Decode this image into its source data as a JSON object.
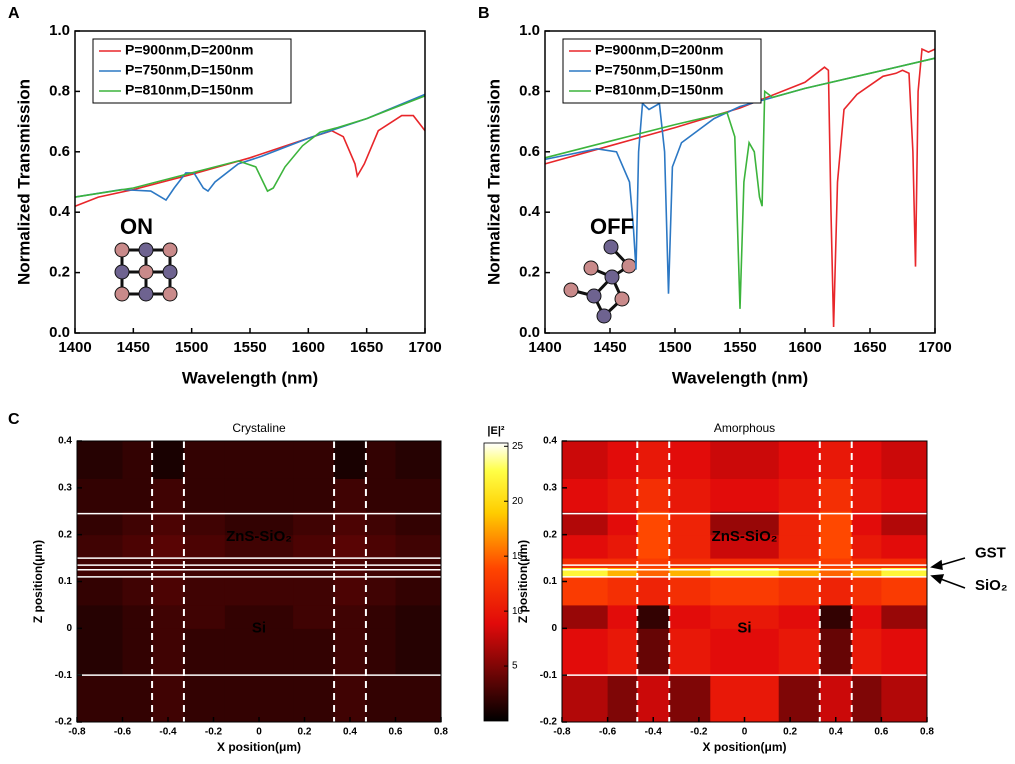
{
  "panel_labels": [
    "A",
    "B",
    "C"
  ],
  "chart_data": [
    {
      "type": "line",
      "xlabel": "Wavelength (nm)",
      "ylabel": "Normalized Transmission",
      "xlim": [
        1400,
        1700
      ],
      "xticks": [
        1400,
        1450,
        1500,
        1550,
        1600,
        1650,
        1700
      ],
      "ylim": [
        0,
        1
      ],
      "yticks": [
        {
          "value": 0,
          "label": "0.0"
        },
        0.2,
        0.4,
        0.6,
        0.8,
        {
          "value": 1,
          "label": "1.0"
        }
      ],
      "annotations": [
        "ON"
      ],
      "legend": "top-left",
      "series": [
        {
          "name": "P=900nm,D=200nm",
          "color": "#e8262a",
          "x": [
            1400,
            1420,
            1450,
            1500,
            1550,
            1600,
            1620,
            1630,
            1640,
            1642,
            1648,
            1660,
            1680,
            1690,
            1700
          ],
          "values": [
            0.42,
            0.45,
            0.475,
            0.525,
            0.58,
            0.645,
            0.67,
            0.65,
            0.56,
            0.52,
            0.56,
            0.67,
            0.72,
            0.72,
            0.67
          ]
        },
        {
          "name": "P=750nm,D=150nm",
          "color": "#2c78c4",
          "x": [
            1400,
            1440,
            1465,
            1478,
            1485,
            1495,
            1502,
            1510,
            1514,
            1520,
            1540,
            1560,
            1600,
            1650,
            1700
          ],
          "values": [
            0.45,
            0.475,
            0.47,
            0.44,
            0.48,
            0.53,
            0.53,
            0.48,
            0.47,
            0.5,
            0.56,
            0.585,
            0.645,
            0.71,
            0.79
          ]
        },
        {
          "name": "P=810nm,D=150nm",
          "color": "#3cb43c",
          "x": [
            1400,
            1450,
            1500,
            1540,
            1555,
            1565,
            1570,
            1580,
            1595,
            1610,
            1625,
            1650,
            1700
          ],
          "values": [
            0.45,
            0.48,
            0.53,
            0.57,
            0.55,
            0.47,
            0.48,
            0.55,
            0.62,
            0.665,
            0.68,
            0.71,
            0.785
          ]
        }
      ]
    },
    {
      "type": "line",
      "xlabel": "Wavelength (nm)",
      "ylabel": "Normalized Transmission",
      "xlim": [
        1400,
        1700
      ],
      "xticks": [
        1400,
        1450,
        1500,
        1550,
        1600,
        1650,
        1700
      ],
      "ylim": [
        0,
        1
      ],
      "yticks": [
        {
          "value": 0,
          "label": "0.0"
        },
        0.2,
        0.4,
        0.6,
        0.8,
        {
          "value": 1,
          "label": "1.0"
        }
      ],
      "annotations": [
        "OFF"
      ],
      "legend": "top-left",
      "series": [
        {
          "name": "P=900nm,D=200nm",
          "color": "#e8262a",
          "x": [
            1400,
            1450,
            1500,
            1550,
            1600,
            1615,
            1618,
            1620,
            1622,
            1625,
            1630,
            1640,
            1660,
            1670,
            1675,
            1680,
            1683,
            1685,
            1687,
            1690,
            1695,
            1700
          ],
          "values": [
            0.56,
            0.62,
            0.68,
            0.745,
            0.83,
            0.88,
            0.87,
            0.4,
            0.02,
            0.5,
            0.74,
            0.79,
            0.85,
            0.86,
            0.87,
            0.86,
            0.6,
            0.22,
            0.8,
            0.94,
            0.93,
            0.94
          ]
        },
        {
          "name": "P=750nm,D=150nm",
          "color": "#2c78c4",
          "x": [
            1400,
            1440,
            1455,
            1465,
            1468,
            1470,
            1472,
            1475,
            1480,
            1488,
            1492,
            1495,
            1498,
            1505,
            1530,
            1550,
            1600,
            1700
          ],
          "values": [
            0.575,
            0.61,
            0.6,
            0.5,
            0.35,
            0.21,
            0.6,
            0.76,
            0.74,
            0.76,
            0.6,
            0.13,
            0.55,
            0.63,
            0.71,
            0.75,
            0.81,
            0.91
          ]
        },
        {
          "name": "P=810nm,D=150nm",
          "color": "#3cb43c",
          "x": [
            1400,
            1450,
            1500,
            1540,
            1546,
            1550,
            1553,
            1557,
            1561,
            1565,
            1567,
            1569,
            1575,
            1600,
            1650,
            1700
          ],
          "values": [
            0.58,
            0.635,
            0.69,
            0.73,
            0.65,
            0.08,
            0.5,
            0.63,
            0.6,
            0.45,
            0.42,
            0.8,
            0.78,
            0.81,
            0.86,
            0.91
          ]
        }
      ]
    },
    {
      "type": "heatmap",
      "title": "Crystaline",
      "xlabel": "X position(μm)",
      "ylabel": "Z position(μm)",
      "xlim": [
        -0.8,
        0.8
      ],
      "xticks": [
        -0.8,
        -0.6,
        -0.4,
        -0.2,
        0,
        0.2,
        0.4,
        0.6,
        0.8
      ],
      "ylim": [
        -0.2,
        0.4
      ],
      "yticks": [
        -0.2,
        -0.1,
        0,
        0.1,
        0.2,
        0.3,
        0.4
      ],
      "xbins": [
        -0.8,
        -0.6,
        -0.47,
        -0.33,
        -0.15,
        0.15,
        0.33,
        0.47,
        0.6,
        0.8
      ],
      "ybins": [
        -0.2,
        -0.1,
        0,
        0.05,
        0.11,
        0.13,
        0.15,
        0.2,
        0.25,
        0.32,
        0.4
      ],
      "values": [
        [
          2,
          2,
          2.5,
          2,
          2,
          2,
          2.5,
          2,
          2
        ],
        [
          1.5,
          2,
          2.5,
          2,
          2,
          2,
          2.5,
          2,
          1.5
        ],
        [
          1.5,
          2,
          2.5,
          2.5,
          2,
          2.5,
          2.5,
          2,
          1.5
        ],
        [
          2,
          2.5,
          3,
          2.5,
          2.5,
          2.5,
          3,
          2.5,
          2
        ],
        [
          2.5,
          2.5,
          3,
          2.5,
          2.5,
          2.5,
          3,
          2.5,
          2.5
        ],
        [
          2.5,
          2.5,
          3,
          2.5,
          2.5,
          2.5,
          3,
          2.5,
          2.5
        ],
        [
          2.5,
          3,
          3.5,
          3,
          2.5,
          3,
          3.5,
          3,
          2.5
        ],
        [
          2,
          2.5,
          3,
          2.5,
          2,
          2.5,
          3,
          2.5,
          2
        ],
        [
          2,
          2,
          2.5,
          2,
          2,
          2,
          2.5,
          2,
          2
        ],
        [
          1.5,
          2,
          1,
          2,
          2,
          2,
          1,
          2,
          1.5
        ]
      ],
      "layer_lines": [
        0.245,
        0.15,
        0.135,
        0.125,
        0.11,
        -0.1
      ],
      "pillar_edges": [
        -0.47,
        -0.33,
        0.33,
        0.47
      ],
      "annotations": [
        "ZnS-SiO₂",
        "Si"
      ]
    },
    {
      "type": "heatmap",
      "title": "Amorphous",
      "xlabel": "X position(μm)",
      "ylabel": "Z position(μm)",
      "xlim": [
        -0.8,
        0.8
      ],
      "xticks": [
        -0.8,
        -0.6,
        -0.4,
        -0.2,
        0,
        0.2,
        0.4,
        0.6,
        0.8
      ],
      "ylim": [
        -0.2,
        0.4
      ],
      "yticks": [
        -0.2,
        -0.1,
        0,
        0.1,
        0.2,
        0.3,
        0.4
      ],
      "xbins": [
        -0.8,
        -0.6,
        -0.47,
        -0.33,
        -0.15,
        0.15,
        0.33,
        0.47,
        0.6,
        0.8
      ],
      "ybins": [
        -0.2,
        -0.1,
        0,
        0.05,
        0.11,
        0.13,
        0.15,
        0.2,
        0.25,
        0.32,
        0.4
      ],
      "values": [
        [
          7,
          5,
          8,
          5,
          10,
          5,
          8,
          5,
          7
        ],
        [
          9,
          10,
          4,
          10,
          9,
          10,
          4,
          10,
          9
        ],
        [
          6,
          9,
          2,
          9,
          10,
          9,
          2,
          9,
          6
        ],
        [
          13,
          12,
          11,
          12,
          13,
          12,
          11,
          12,
          13
        ],
        [
          22,
          18,
          15,
          18,
          22,
          18,
          15,
          18,
          22
        ],
        [
          12,
          12,
          13,
          12,
          12,
          12,
          13,
          12,
          12
        ],
        [
          9,
          10,
          14,
          11,
          8,
          11,
          14,
          10,
          9
        ],
        [
          7,
          9,
          14,
          11,
          6,
          11,
          14,
          9,
          7
        ],
        [
          9,
          10,
          12,
          10,
          9,
          10,
          12,
          10,
          9
        ],
        [
          8,
          9,
          10,
          9,
          8,
          9,
          10,
          9,
          8
        ]
      ],
      "layer_lines": [
        0.245,
        0.135,
        0.125,
        0.11,
        -0.1
      ],
      "pillar_edges": [
        -0.47,
        -0.33,
        0.33,
        0.47
      ],
      "annotations": [
        "ZnS-SiO₂",
        "Si",
        "GST",
        "SiO₂"
      ],
      "colorbar": {
        "label": "|E|²",
        "lim": [
          0,
          25.3
        ],
        "ticks": [
          5,
          10,
          15,
          20,
          25
        ]
      }
    }
  ]
}
